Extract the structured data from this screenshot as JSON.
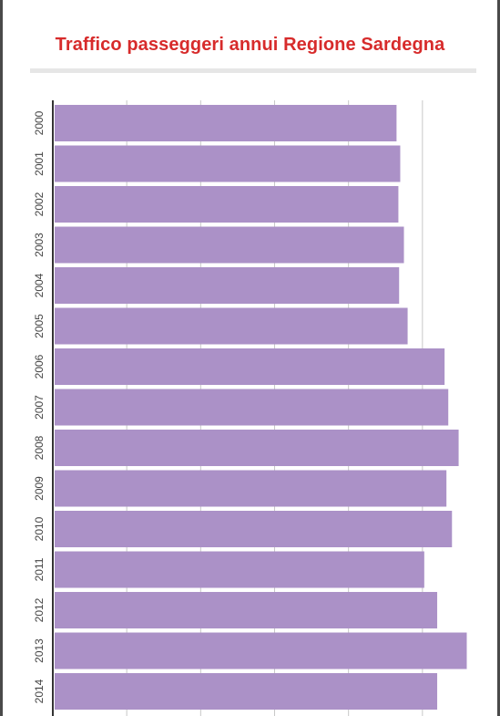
{
  "chart_data": {
    "type": "bar",
    "orientation": "horizontal",
    "title": "Traffico passeggeri annui Regione Sardegna",
    "categories": [
      "2000",
      "2001",
      "2002",
      "2003",
      "2004",
      "2005",
      "2006",
      "2007",
      "2008",
      "2009",
      "2010",
      "2011",
      "2012",
      "2013",
      "2014"
    ],
    "values": [
      92.5,
      93.5,
      93.0,
      94.5,
      93.2,
      95.5,
      105.5,
      106.5,
      109.3,
      106.0,
      107.5,
      100.0,
      103.5,
      111.5,
      103.5
    ],
    "xlim": [
      0,
      120
    ],
    "grid": true,
    "bar_color": "#ab91c7",
    "axis_color": "#333333",
    "grid_color": "#c8c8c8",
    "title_color": "#d72b2b"
  }
}
